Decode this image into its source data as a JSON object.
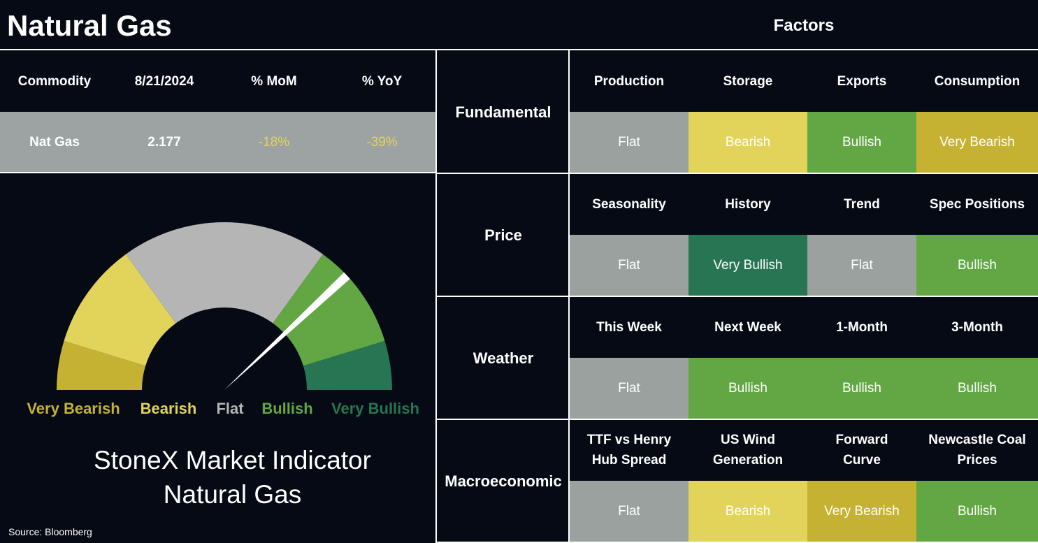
{
  "header": {
    "title": "Natural Gas",
    "factors_title": "Factors"
  },
  "commodity_table": {
    "columns": [
      "Commodity",
      "8/21/2024",
      "% MoM",
      "% YoY"
    ],
    "row": [
      "Nat Gas",
      "2.177",
      "-18%",
      "-39%"
    ]
  },
  "gauge": {
    "labels": [
      {
        "text": "Very Bearish",
        "color": "#c6b232"
      },
      {
        "text": "Bearish",
        "color": "#e2d35a"
      },
      {
        "text": "Flat",
        "color": "#b5b5b5"
      },
      {
        "text": "Bullish",
        "color": "#62a744"
      },
      {
        "text": "Very Bullish",
        "color": "#277553"
      }
    ],
    "title": [
      "StoneX Market Indicator",
      "Natural Gas"
    ]
  },
  "source": "Source: Bloomberg",
  "factors": [
    {
      "name": "Fundamental",
      "items": [
        {
          "label": "Production",
          "rating": "Flat",
          "color": "#9aa19f"
        },
        {
          "label": "Storage",
          "rating": "Bearish",
          "color": "#e2d35a"
        },
        {
          "label": "Exports",
          "rating": "Bullish",
          "color": "#62a744"
        },
        {
          "label": "Consumption",
          "rating": "Very Bearish",
          "color": "#c6b232"
        }
      ]
    },
    {
      "name": "Price",
      "items": [
        {
          "label": "Seasonality",
          "rating": "Flat",
          "color": "#9aa19f"
        },
        {
          "label": "History",
          "rating": "Very Bullish",
          "color": "#277553"
        },
        {
          "label": "Trend",
          "rating": "Flat",
          "color": "#9aa19f"
        },
        {
          "label": "Spec Positions",
          "rating": "Bullish",
          "color": "#62a744"
        }
      ]
    },
    {
      "name": "Weather",
      "items": [
        {
          "label": "This Week",
          "rating": "Flat",
          "color": "#9aa19f"
        },
        {
          "label": "Next Week",
          "rating": "Bullish",
          "color": "#62a744"
        },
        {
          "label": "1-Month",
          "rating": "Bullish",
          "color": "#62a744"
        },
        {
          "label": "3-Month",
          "rating": "Bullish",
          "color": "#62a744"
        }
      ]
    },
    {
      "name": "Macroeconomic",
      "items": [
        {
          "label": "TTF vs Henry\nHub Spread",
          "rating": "Flat",
          "color": "#9aa19f"
        },
        {
          "label": "US Wind\nGeneration",
          "rating": "Bearish",
          "color": "#e2d35a"
        },
        {
          "label": "Forward\nCurve",
          "rating": "Very Bearish",
          "color": "#c6b232"
        },
        {
          "label": "Newcastle Coal\nPrices",
          "rating": "Bullish",
          "color": "#62a744"
        }
      ]
    }
  ]
}
